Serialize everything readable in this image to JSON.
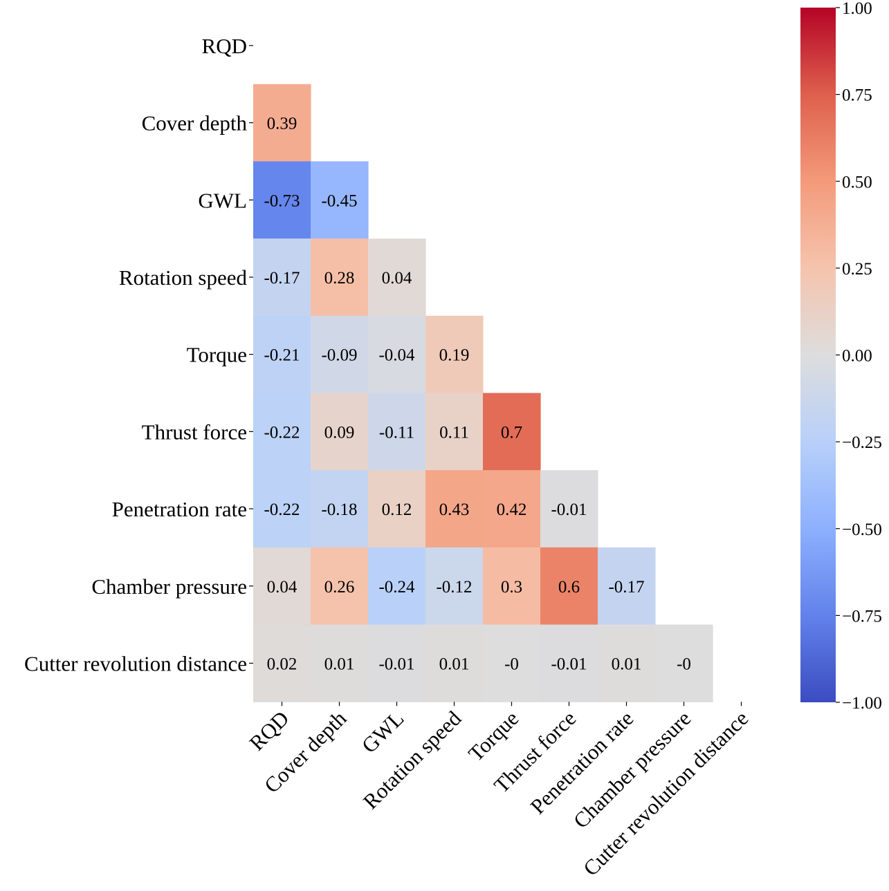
{
  "chart_data": {
    "type": "heatmap",
    "title": "",
    "xlabel": "",
    "ylabel": "",
    "variables": [
      "RQD",
      "Cover depth",
      "GWL",
      "Rotation speed",
      "Torque",
      "Thrust force",
      "Penetration rate",
      "Chamber pressure",
      "Cutter revolution distance"
    ],
    "mask": "upper-triangle-including-diagonal",
    "rows": [
      [],
      [
        "0.39"
      ],
      [
        "-0.73",
        "-0.45"
      ],
      [
        "-0.17",
        "0.28",
        "0.04"
      ],
      [
        "-0.21",
        "-0.09",
        "-0.04",
        "0.19"
      ],
      [
        "-0.22",
        "0.09",
        "-0.11",
        "0.11",
        "0.7"
      ],
      [
        "-0.22",
        "-0.18",
        "0.12",
        "0.43",
        "0.42",
        "-0.01"
      ],
      [
        "0.04",
        "0.26",
        "-0.24",
        "-0.12",
        "0.3",
        "0.6",
        "-0.17"
      ],
      [
        "0.02",
        "0.01",
        "-0.01",
        "0.01",
        "-0",
        "-0.01",
        "0.01",
        "-0"
      ]
    ],
    "colorscale": "coolwarm",
    "colorscale_colors": [
      "#3b4cc0",
      "#dddddd",
      "#b40426"
    ],
    "vrange": [
      -1,
      1
    ],
    "colorbar": {
      "position": "right",
      "ticks": [
        {
          "value": 1,
          "label": "1.00"
        },
        {
          "value": 0.75,
          "label": "0.75"
        },
        {
          "value": 0.5,
          "label": "0.50"
        },
        {
          "value": 0.25,
          "label": "0.25"
        },
        {
          "value": 0,
          "label": "0.00"
        },
        {
          "value": -0.25,
          "label": "−0.25"
        },
        {
          "value": -0.5,
          "label": "−0.50"
        },
        {
          "value": -0.75,
          "label": "−0.75"
        },
        {
          "value": -1,
          "label": "−1.00"
        }
      ]
    }
  }
}
